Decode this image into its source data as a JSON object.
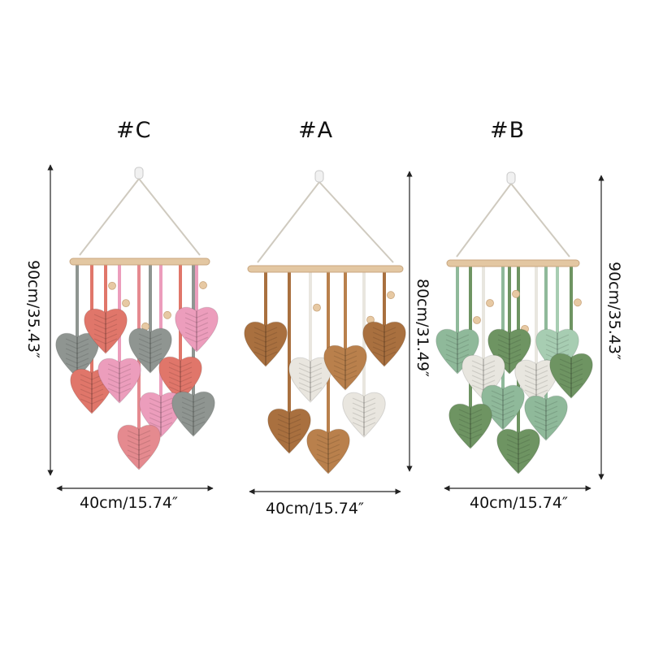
{
  "products": [
    {
      "id": "#C",
      "width_label": "40cm/15.74″",
      "height_label": "90cm/35.43″",
      "colors": [
        "#8f9591",
        "#e0766a",
        "#ec9dbc",
        "#e58a8f"
      ]
    },
    {
      "id": "#A",
      "width_label": "40cm/15.74″",
      "height_label": "80cm/31.49″",
      "colors": [
        "#a9703f",
        "#e9e6df",
        "#b9804c"
      ]
    },
    {
      "id": "#B",
      "width_label": "40cm/15.74″",
      "height_label": "90cm/35.43″",
      "colors": [
        "#8fb99a",
        "#e8e6df",
        "#6e9462",
        "#a7cdb2"
      ]
    }
  ]
}
